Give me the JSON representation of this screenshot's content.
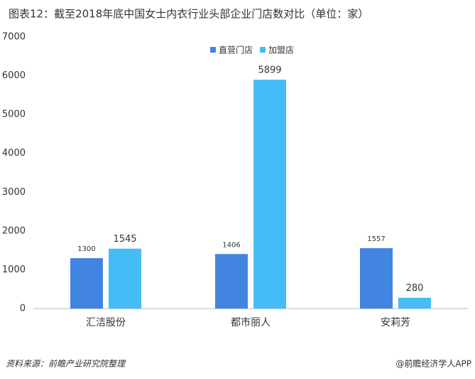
{
  "chart_data": {
    "type": "bar",
    "title": "图表12：截至2018年底中国女士内衣行业头部企业门店数对比（单位：家）",
    "categories": [
      "汇洁股份",
      "都市丽人",
      "安莉芳"
    ],
    "series": [
      {
        "name": "直营门店",
        "color": "#4185e0",
        "values": [
          1300,
          1406,
          1557
        ]
      },
      {
        "name": "加盟店",
        "color": "#45bcf5",
        "values": [
          1545,
          5899,
          280
        ]
      }
    ],
    "ylim": [
      0,
      7000
    ],
    "yticks": [
      0,
      1000,
      2000,
      3000,
      4000,
      5000,
      6000,
      7000
    ],
    "grid": false,
    "source": "资料来源：前瞻产业研究院整理",
    "credit": "@前瞻经济学人APP"
  }
}
